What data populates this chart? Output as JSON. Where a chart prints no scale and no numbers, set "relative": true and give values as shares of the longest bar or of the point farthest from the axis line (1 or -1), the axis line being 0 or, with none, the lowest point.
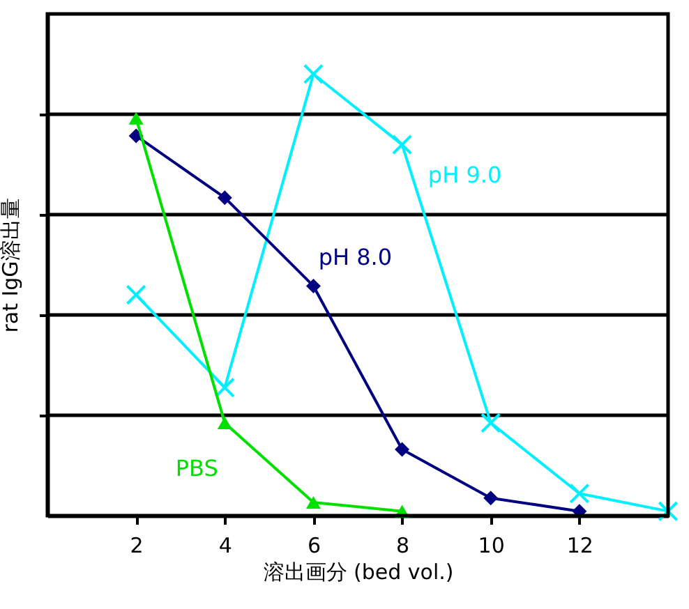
{
  "chart_data": {
    "type": "line",
    "relative": true,
    "xlabel": "溶出画分 (bed vol.)",
    "ylabel": "rat IgG溶出量",
    "xlim": [
      0,
      14
    ],
    "xticks": [
      2,
      4,
      6,
      8,
      10,
      12
    ],
    "grid": "y",
    "legend": false,
    "line_style": "solid",
    "series": [
      {
        "name": "pH 9.0",
        "color": "#00f0ff",
        "marker": "cross",
        "x": [
          2,
          4,
          6,
          8,
          10,
          12,
          14
        ],
        "values": [
          0.5,
          0.29,
          1,
          0.84,
          0.21,
          0.05,
          0.01
        ]
      },
      {
        "name": "pH 8.0",
        "color": "#000080",
        "marker": "diamond",
        "x": [
          2,
          4,
          6,
          8,
          10,
          12
        ],
        "values": [
          0.86,
          0.72,
          0.52,
          0.15,
          0.04,
          0.01
        ]
      },
      {
        "name": "PBS",
        "color": "#00e000",
        "marker": "triangle",
        "x": [
          2,
          4,
          6,
          8
        ],
        "values": [
          0.9,
          0.21,
          0.03,
          0.01
        ]
      }
    ]
  }
}
